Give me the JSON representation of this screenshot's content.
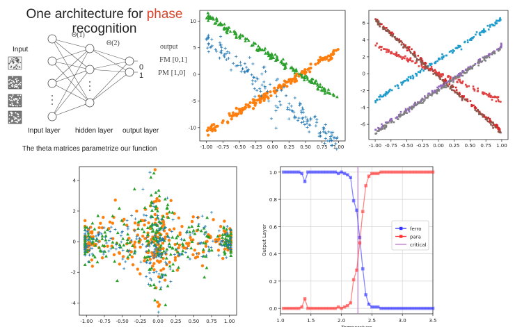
{
  "slide": {
    "title_part1": "One architecture for ",
    "title_accent": "phase",
    "title_line2": "recognition",
    "accent_color": "#d9442b"
  },
  "network": {
    "input_label": "Input",
    "theta1": "Θ(1)",
    "theta2": "Θ(2)",
    "output_header": "output",
    "output_bit0": "0",
    "output_bit1": "1",
    "fm_code": "FM [0,1]",
    "pm_code": "PM [1,0]",
    "input_layer_label": "Input layer",
    "hidden_layer_label": "hidden layer",
    "output_layer_label": "output layer",
    "caption": "The theta matrices parametrize our function"
  },
  "chart_data": [
    {
      "type": "scatter",
      "id": "crossing-scatter",
      "xlim": [
        -1.1,
        1.1
      ],
      "ylim": [
        -12.5,
        12
      ],
      "xticks": [
        "-1.00",
        "-0.75",
        "-0.50",
        "-0.25",
        "0.00",
        "0.25",
        "0.50",
        "0.75",
        "1.00"
      ],
      "xtick_values": [
        -1,
        -0.75,
        -0.5,
        -0.25,
        0,
        0.25,
        0.5,
        0.75,
        1
      ],
      "yticks": [
        "10",
        "5",
        "0",
        "-5",
        "-10"
      ],
      "ytick_values": [
        10,
        5,
        0,
        -5,
        -10
      ],
      "series": [
        {
          "marker": "triangle",
          "color": "#2ca02c",
          "line": [
            [
              -1,
              11
            ],
            [
              1,
              -4.5
            ]
          ]
        },
        {
          "marker": "circle",
          "color": "#ff7f0e",
          "line": [
            [
              -1,
              -11
            ],
            [
              1,
              4.5
            ]
          ]
        },
        {
          "marker": "plus",
          "color": "#1f77b4",
          "line": [
            [
              -1,
              6.5
            ],
            [
              1,
              -13
            ]
          ]
        }
      ]
    },
    {
      "type": "scatter",
      "id": "multicolor-x",
      "xlim": [
        -1.1,
        1.1
      ],
      "ylim": [
        -7.8,
        7.5
      ],
      "xticks": [
        "-1.00",
        "-0.75",
        "-0.50",
        "-0.25",
        "0.00",
        "0.25",
        "0.50",
        "0.75",
        "1.00"
      ],
      "xtick_values": [
        -1,
        -0.75,
        -0.5,
        -0.25,
        0,
        0.25,
        0.5,
        0.75,
        1
      ],
      "yticks": [
        "6",
        "4",
        "2",
        "0",
        "-2",
        "-4",
        "-6"
      ],
      "ytick_values": [
        6,
        4,
        2,
        0,
        -2,
        -4,
        -6
      ],
      "series": [
        {
          "color": "#1f9bcc",
          "line": [
            [
              -1,
              -3.2
            ],
            [
              1,
              6.5
            ]
          ]
        },
        {
          "color": "#d62728",
          "line": [
            [
              -1,
              6.5
            ],
            [
              1,
              -6.8
            ]
          ]
        },
        {
          "color": "#e04040",
          "line": [
            [
              -1,
              3.4
            ],
            [
              1,
              -3.2
            ]
          ]
        },
        {
          "color": "#9467bd",
          "line": [
            [
              -1,
              -6.8
            ],
            [
              1,
              3.3
            ]
          ]
        },
        {
          "color": "#8c564b",
          "line": [
            [
              -1,
              6.3
            ],
            [
              1,
              -7
            ]
          ]
        },
        {
          "color": "#7f7f7f",
          "line": [
            [
              -1,
              -7
            ],
            [
              1,
              3.1
            ]
          ]
        }
      ]
    },
    {
      "type": "scatter",
      "id": "dense-cloud",
      "xlim": [
        -1.1,
        1.1
      ],
      "ylim": [
        -4.8,
        4.9
      ],
      "xticks": [
        "-1.00",
        "-0.75",
        "-0.50",
        "-0.25",
        "0.00",
        "0.25",
        "0.50",
        "0.75",
        "1.00"
      ],
      "xtick_values": [
        -1,
        -0.75,
        -0.5,
        -0.25,
        0,
        0.25,
        0.5,
        0.75,
        1
      ],
      "yticks": [
        "4",
        "2",
        "0",
        "-2",
        "-4"
      ],
      "ytick_values": [
        4,
        2,
        0,
        -2,
        -4
      ],
      "series": [
        {
          "marker": "circle",
          "color": "#ff7f0e"
        },
        {
          "marker": "triangle",
          "color": "#2ca02c"
        },
        {
          "marker": "plus",
          "color": "#1f77b4"
        }
      ]
    },
    {
      "type": "line",
      "id": "output-vs-temperature",
      "xlabel": "Temperature",
      "ylabel": "Output Layer",
      "xlim": [
        1.0,
        3.5
      ],
      "ylim": [
        -0.04,
        1.04
      ],
      "xticks": [
        "1.0",
        "1.5",
        "2.0",
        "2.5",
        "3.0",
        "3.5"
      ],
      "xtick_values": [
        1.0,
        1.5,
        2.0,
        2.5,
        3.0,
        3.5
      ],
      "yticks": [
        "0.0",
        "0.2",
        "0.4",
        "0.6",
        "0.8",
        "1.0"
      ],
      "ytick_values": [
        0,
        0.2,
        0.4,
        0.6,
        0.8,
        1.0
      ],
      "grid": true,
      "legend_position": "center-right",
      "critical_x": 2.27,
      "x": [
        1.05,
        1.1,
        1.15,
        1.2,
        1.25,
        1.3,
        1.35,
        1.4,
        1.45,
        1.5,
        1.55,
        1.6,
        1.65,
        1.7,
        1.75,
        1.8,
        1.85,
        1.9,
        1.95,
        2.0,
        2.05,
        2.1,
        2.15,
        2.2,
        2.25,
        2.3,
        2.35,
        2.4,
        2.45,
        2.5,
        2.55,
        2.6,
        2.65,
        2.7,
        2.75,
        2.8,
        2.85,
        2.9,
        2.95,
        3.0,
        3.05,
        3.1,
        3.15,
        3.2,
        3.25,
        3.3,
        3.35,
        3.4,
        3.45,
        3.5
      ],
      "series": [
        {
          "name": "ferro",
          "color": "#3333ff",
          "marker": "square",
          "values": [
            1,
            1,
            1,
            1,
            1,
            1,
            0.99,
            0.93,
            1,
            1,
            1,
            1,
            1,
            1,
            1,
            1,
            1,
            1,
            0.99,
            1,
            0.99,
            0.98,
            0.96,
            0.79,
            0.72,
            0.52,
            0.29,
            0.1,
            0.03,
            0.01,
            0.01,
            0.01,
            0,
            0,
            0,
            0,
            0,
            0,
            0,
            0,
            0,
            0,
            0,
            0,
            0,
            0,
            0,
            0,
            0,
            0
          ]
        },
        {
          "name": "para",
          "color": "#ff3333",
          "marker": "square",
          "values": [
            0,
            0,
            0,
            0,
            0,
            0,
            0.01,
            0.07,
            0,
            0,
            0,
            0,
            0,
            0,
            0,
            0,
            0,
            0,
            0.01,
            0,
            0.01,
            0.02,
            0.04,
            0.21,
            0.28,
            0.48,
            0.71,
            0.9,
            0.97,
            0.99,
            0.99,
            0.99,
            1,
            1,
            1,
            1,
            1,
            1,
            1,
            1,
            1,
            1,
            1,
            1,
            1,
            1,
            1,
            1,
            1,
            1
          ]
        },
        {
          "name": "critical",
          "color": "#bb77cc",
          "marker": "line"
        }
      ]
    }
  ]
}
